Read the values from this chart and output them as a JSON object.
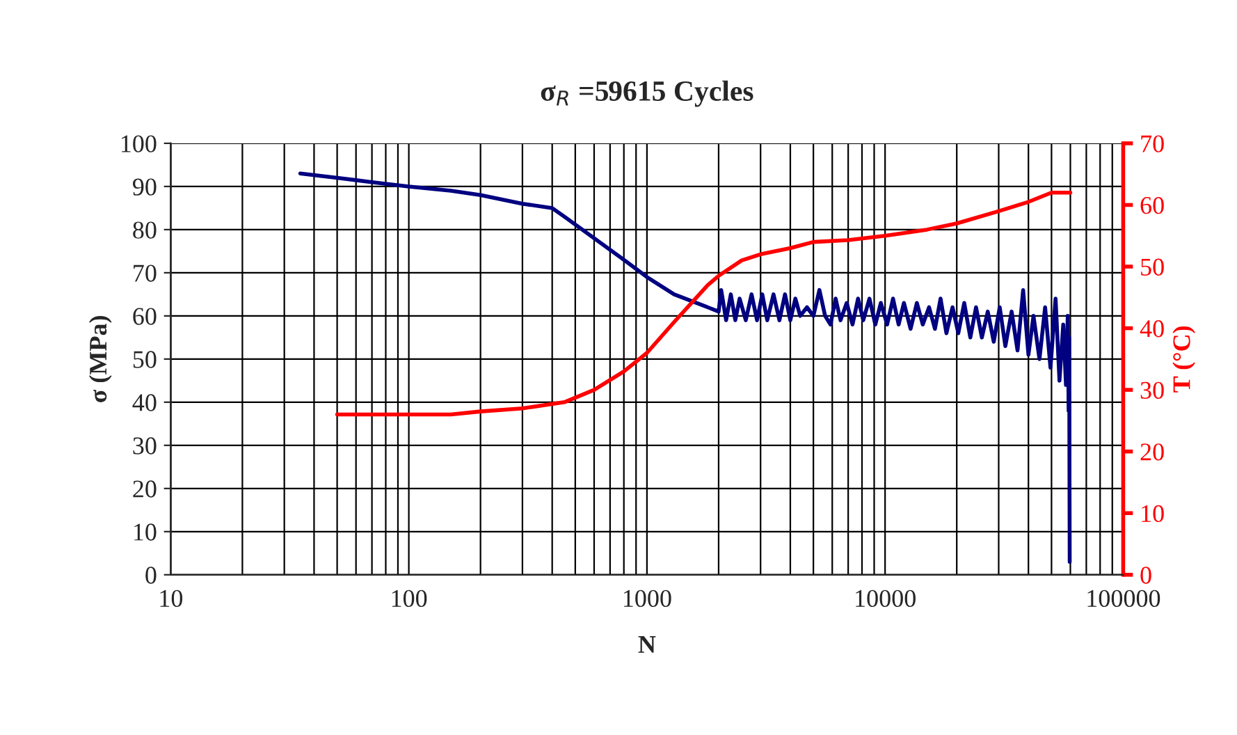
{
  "chart_data": {
    "type": "line",
    "title": "σ$_{R}$ =59615 Cycles",
    "xlabel": "N",
    "ylabel": "σ (MPa)",
    "y2label": "T (°C)",
    "log": "x",
    "grid": true,
    "xlim": [
      10,
      100000
    ],
    "xticks": [
      10,
      100,
      1000,
      10000,
      100000
    ],
    "ylim": [
      0,
      100
    ],
    "yticks": [
      0,
      10,
      20,
      30,
      40,
      50,
      60,
      70,
      80,
      90,
      100
    ],
    "y2lim": [
      0,
      70
    ],
    "y2ticks": [
      0,
      10,
      20,
      30,
      40,
      50,
      60,
      70
    ],
    "series": [
      {
        "color": "#000080",
        "axis": "y",
        "x": [
          35,
          50,
          70,
          100,
          150,
          200,
          300,
          400,
          450,
          600,
          800,
          1000,
          1300,
          1800,
          2000,
          2050,
          2150,
          2250,
          2350,
          2450,
          2600,
          2750,
          2900,
          3050,
          3200,
          3400,
          3600,
          3800,
          4000,
          4200,
          4400,
          4700,
          5000,
          5300,
          5600,
          5900,
          6200,
          6500,
          6900,
          7300,
          7700,
          8100,
          8600,
          9100,
          9600,
          10200,
          10800,
          11400,
          12000,
          12800,
          13600,
          14400,
          15300,
          16200,
          17100,
          18100,
          19200,
          20300,
          21500,
          22800,
          24100,
          25500,
          27000,
          28600,
          30300,
          32000,
          34000,
          36000,
          38000,
          40000,
          42000,
          44500,
          47000,
          49500,
          52000,
          54000,
          56000,
          57500,
          58500,
          59000,
          59300,
          59615
        ],
        "values": [
          93,
          92,
          91,
          90,
          89,
          88,
          86,
          85,
          83,
          78,
          73,
          69,
          65,
          62,
          61,
          66,
          59,
          65,
          59,
          64,
          59,
          65,
          59,
          65,
          59,
          65,
          59,
          65,
          59,
          64,
          60,
          62,
          60,
          66,
          60,
          58,
          64,
          59,
          63,
          58,
          64,
          59,
          64,
          58,
          63,
          58,
          64,
          58,
          63,
          57,
          63,
          58,
          62,
          57,
          64,
          56,
          62,
          56,
          63,
          55,
          62,
          55,
          61,
          54,
          62,
          53,
          61,
          52,
          66,
          51,
          60,
          50,
          62,
          48,
          64,
          45,
          58,
          44,
          60,
          38,
          55,
          3
        ]
      },
      {
        "color": "#ff0000",
        "axis": "y2",
        "x": [
          50,
          100,
          150,
          200,
          300,
          450,
          600,
          800,
          1000,
          1300,
          1800,
          2000,
          2500,
          3000,
          4000,
          5000,
          7000,
          10000,
          15000,
          20000,
          30000,
          40000,
          50000,
          60000
        ],
        "values": [
          26,
          26,
          26,
          26.5,
          27,
          28,
          30,
          33,
          36,
          41,
          47,
          48.5,
          51,
          52,
          53,
          54,
          54.3,
          55,
          56,
          57,
          59,
          60.5,
          62,
          62
        ]
      }
    ]
  }
}
